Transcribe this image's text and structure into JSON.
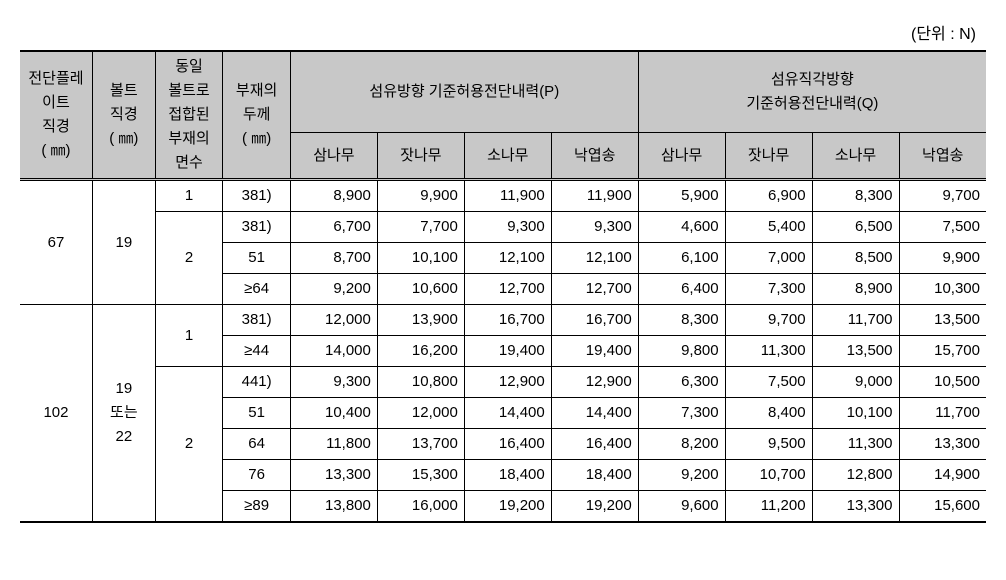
{
  "unit_label": "(단위  :  N)",
  "headers": {
    "col_shearplate": "전단플레\n이트\n직경\n( ㎜)",
    "col_bolt": "볼트\n직경\n( ㎜)",
    "col_faces": "동일\n볼트로\n접합된\n부재의\n면수",
    "col_thickness": "부재의\n두께\n( ㎜)",
    "group_p": "섬유방향 기준허용전단내력(P)",
    "group_q": "섬유직각방향\n기준허용전단내력(Q)",
    "species": [
      "삼나무",
      "잣나무",
      "소나무",
      "낙엽송"
    ]
  },
  "rows": [
    {
      "sp": "67",
      "sp_rowspan": 4,
      "bolt": "19",
      "bolt_rowspan": 4,
      "faces": "1",
      "faces_rowspan": 1,
      "thk": "381)",
      "p": [
        "8,900",
        "9,900",
        "11,900",
        "11,900"
      ],
      "q": [
        "5,900",
        "6,900",
        "8,300",
        "9,700"
      ],
      "sep": false
    },
    {
      "faces": "2",
      "faces_rowspan": 3,
      "thk": "381)",
      "p": [
        "6,700",
        "7,700",
        "9,300",
        "9,300"
      ],
      "q": [
        "4,600",
        "5,400",
        "6,500",
        "7,500"
      ],
      "sep": false
    },
    {
      "thk": "51",
      "p": [
        "8,700",
        "10,100",
        "12,100",
        "12,100"
      ],
      "q": [
        "6,100",
        "7,000",
        "8,500",
        "9,900"
      ],
      "sep": false
    },
    {
      "thk": "≥64",
      "p": [
        "9,200",
        "10,600",
        "12,700",
        "12,700"
      ],
      "q": [
        "6,400",
        "7,300",
        "8,900",
        "10,300"
      ],
      "sep": true
    },
    {
      "sp": "102",
      "sp_rowspan": 7,
      "bolt": "19\n또는\n22",
      "bolt_rowspan": 7,
      "faces": "1",
      "faces_rowspan": 2,
      "thk": "381)",
      "p": [
        "12,000",
        "13,900",
        "16,700",
        "16,700"
      ],
      "q": [
        "8,300",
        "9,700",
        "11,700",
        "13,500"
      ],
      "sep": false
    },
    {
      "thk": "≥44",
      "p": [
        "14,000",
        "16,200",
        "19,400",
        "19,400"
      ],
      "q": [
        "9,800",
        "11,300",
        "13,500",
        "15,700"
      ],
      "sep": false
    },
    {
      "faces": "2",
      "faces_rowspan": 5,
      "thk": "441)",
      "p": [
        "9,300",
        "10,800",
        "12,900",
        "12,900"
      ],
      "q": [
        "6,300",
        "7,500",
        "9,000",
        "10,500"
      ],
      "sep": false
    },
    {
      "thk": "51",
      "p": [
        "10,400",
        "12,000",
        "14,400",
        "14,400"
      ],
      "q": [
        "7,300",
        "8,400",
        "10,100",
        "11,700"
      ],
      "sep": false
    },
    {
      "thk": "64",
      "p": [
        "11,800",
        "13,700",
        "16,400",
        "16,400"
      ],
      "q": [
        "8,200",
        "9,500",
        "11,300",
        "13,300"
      ],
      "sep": false
    },
    {
      "thk": "76",
      "p": [
        "13,300",
        "15,300",
        "18,400",
        "18,400"
      ],
      "q": [
        "9,200",
        "10,700",
        "12,800",
        "14,900"
      ],
      "sep": false
    },
    {
      "thk": "≥89",
      "p": [
        "13,800",
        "16,000",
        "19,200",
        "19,200"
      ],
      "q": [
        "9,600",
        "11,200",
        "13,300",
        "15,600"
      ],
      "sep": false
    }
  ]
}
